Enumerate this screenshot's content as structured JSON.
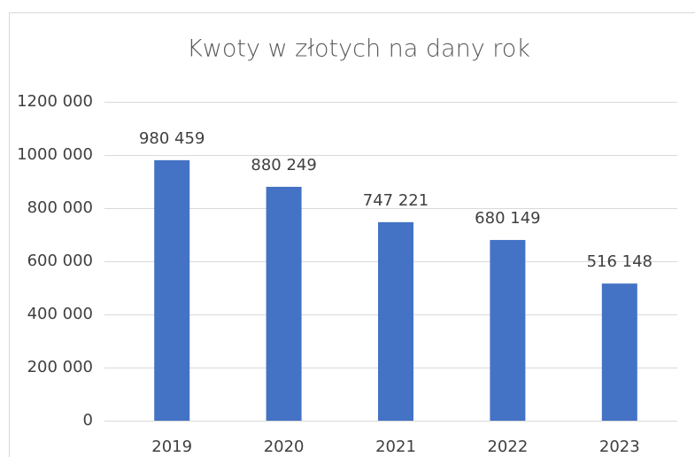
{
  "chart_data": {
    "type": "bar",
    "title": "Kwoty w złotych na dany rok",
    "categories": [
      "2019",
      "2020",
      "2021",
      "2022",
      "2023"
    ],
    "values": [
      980459,
      880249,
      747221,
      680149,
      516148
    ],
    "value_labels": [
      "980 459",
      "880 249",
      "747 221",
      "680 149",
      "516 148"
    ],
    "color": "#4472c4",
    "ylim": [
      0,
      1200000
    ],
    "yticks": [
      0,
      {
        "value": 200000,
        "label": "200 000"
      },
      {
        "value": 400000,
        "label": "400 000"
      },
      {
        "value": 600000,
        "label": "600 000"
      },
      {
        "value": 800000,
        "label": "800 000"
      },
      {
        "value": 1000000,
        "label": "1000 000"
      },
      {
        "value": 1200000,
        "label": "1200 000"
      }
    ],
    "grid": true
  }
}
